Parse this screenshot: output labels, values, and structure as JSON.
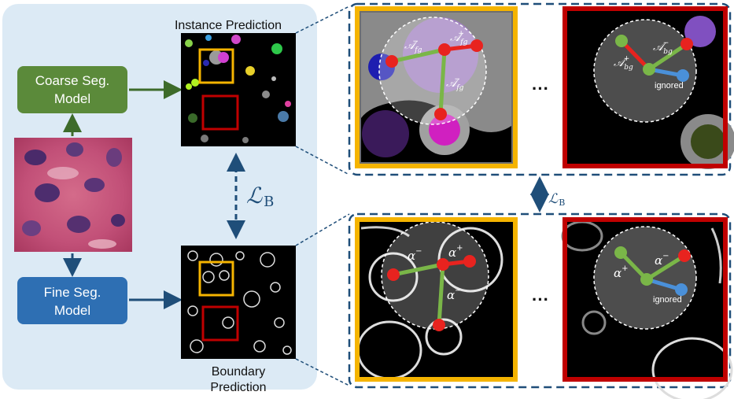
{
  "diagram": {
    "instance_label": "Instance Prediction",
    "boundary_label_line1": "Boundary",
    "boundary_label_line2": "Prediction",
    "coarse_model_line1": "Coarse Seg.",
    "coarse_model_line2": "Model",
    "fine_model_line1": "Fine Seg.",
    "fine_model_line2": "Model",
    "loss_symbol": "ℒ",
    "loss_subscript": "B",
    "ellipsis": "···",
    "ignored_label": "ignored",
    "A_fg": "𝒜",
    "A_bg": "𝒜",
    "sub_fg": "fg",
    "sub_bg": "bg",
    "sup_plus": "+",
    "sup_minus": "−",
    "alpha": "α"
  },
  "colors": {
    "left_panel_bg": "#dceaf5",
    "coarse_model": "#5b8a3a",
    "fine_model": "#2e6fb3",
    "arrow_dark_blue": "#1f4e79",
    "arrow_green": "#3d6b2a",
    "orange_box": "#f5b400",
    "red_box": "#c00000",
    "positive_edge": "#e8231f",
    "negative_edge": "#7ab648",
    "ignored_edge": "#4a90d9"
  }
}
